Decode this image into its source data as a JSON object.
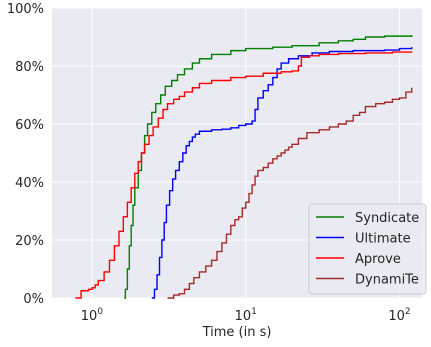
{
  "chart_data": {
    "type": "line",
    "title": "",
    "xlabel": "Time (in s)",
    "ylabel": "",
    "x_scale": "log",
    "xlim": [
      0.55,
      140
    ],
    "ylim": [
      0,
      100
    ],
    "x_ticks": [
      {
        "value": 1,
        "label_base": "10",
        "label_exp": "0"
      },
      {
        "value": 10,
        "label_base": "10",
        "label_exp": "1"
      },
      {
        "value": 100,
        "label_base": "10",
        "label_exp": "2"
      }
    ],
    "y_ticks": [
      {
        "value": 0,
        "label": "0%"
      },
      {
        "value": 20,
        "label": "20%"
      },
      {
        "value": 40,
        "label": "40%"
      },
      {
        "value": 60,
        "label": "60%"
      },
      {
        "value": 80,
        "label": "80%"
      },
      {
        "value": 100,
        "label": "100%"
      }
    ],
    "grid": true,
    "background": "#eaeaf2",
    "legend_position": "lower-right",
    "series": [
      {
        "name": "Syndicate",
        "color": "#008000",
        "points": [
          [
            1.62,
            0
          ],
          [
            1.65,
            3
          ],
          [
            1.7,
            10
          ],
          [
            1.75,
            18
          ],
          [
            1.8,
            25
          ],
          [
            1.85,
            32
          ],
          [
            1.9,
            38
          ],
          [
            2.0,
            44
          ],
          [
            2.1,
            50
          ],
          [
            2.2,
            56
          ],
          [
            2.3,
            60
          ],
          [
            2.45,
            64
          ],
          [
            2.6,
            67
          ],
          [
            2.8,
            70
          ],
          [
            3.0,
            73
          ],
          [
            3.3,
            75
          ],
          [
            3.6,
            77
          ],
          [
            4.0,
            79
          ],
          [
            4.5,
            81
          ],
          [
            5.0,
            82.5
          ],
          [
            6.0,
            84
          ],
          [
            8.0,
            85.3
          ],
          [
            10.0,
            86
          ],
          [
            15.0,
            86.5
          ],
          [
            20.0,
            87
          ],
          [
            30.0,
            88
          ],
          [
            40.0,
            88.7
          ],
          [
            50.0,
            89.2
          ],
          [
            60.0,
            90
          ],
          [
            80.0,
            90.3
          ],
          [
            120.0,
            90.7
          ]
        ]
      },
      {
        "name": "Ultimate",
        "color": "#0000ff",
        "points": [
          [
            2.45,
            0
          ],
          [
            2.55,
            3
          ],
          [
            2.65,
            8
          ],
          [
            2.75,
            14
          ],
          [
            2.85,
            20
          ],
          [
            2.95,
            26
          ],
          [
            3.05,
            32
          ],
          [
            3.2,
            37
          ],
          [
            3.35,
            41
          ],
          [
            3.5,
            44
          ],
          [
            3.7,
            47
          ],
          [
            3.9,
            50
          ],
          [
            4.1,
            52.5
          ],
          [
            4.3,
            54
          ],
          [
            4.5,
            55.5
          ],
          [
            4.7,
            56.5
          ],
          [
            5.0,
            57.5
          ],
          [
            6.0,
            58
          ],
          [
            7.0,
            58.2
          ],
          [
            8.0,
            58.7
          ],
          [
            9.0,
            59.5
          ],
          [
            10.0,
            60
          ],
          [
            11.0,
            61
          ],
          [
            11.5,
            65
          ],
          [
            12.0,
            69
          ],
          [
            13.0,
            71.5
          ],
          [
            14.0,
            73.5
          ],
          [
            15.0,
            76
          ],
          [
            16.0,
            79
          ],
          [
            17.0,
            81
          ],
          [
            19.0,
            82.5
          ],
          [
            22.0,
            83.5
          ],
          [
            27.0,
            84.5
          ],
          [
            35.0,
            85
          ],
          [
            50.0,
            85.3
          ],
          [
            80.0,
            85.5
          ],
          [
            100.0,
            86
          ],
          [
            120.0,
            86.5
          ]
        ]
      },
      {
        "name": "Aprove",
        "color": "#ff0000",
        "points": [
          [
            0.78,
            0
          ],
          [
            0.85,
            2.5
          ],
          [
            0.95,
            3
          ],
          [
            1.0,
            3.5
          ],
          [
            1.05,
            4.5
          ],
          [
            1.1,
            6
          ],
          [
            1.2,
            9
          ],
          [
            1.3,
            13
          ],
          [
            1.4,
            18
          ],
          [
            1.5,
            23
          ],
          [
            1.6,
            28
          ],
          [
            1.7,
            33
          ],
          [
            1.8,
            38
          ],
          [
            1.9,
            43
          ],
          [
            2.0,
            47
          ],
          [
            2.1,
            50
          ],
          [
            2.2,
            53
          ],
          [
            2.35,
            56
          ],
          [
            2.5,
            59
          ],
          [
            2.7,
            62
          ],
          [
            2.9,
            65
          ],
          [
            3.1,
            67
          ],
          [
            3.4,
            68.5
          ],
          [
            3.7,
            69.5
          ],
          [
            4.0,
            71
          ],
          [
            4.5,
            72.5
          ],
          [
            5.0,
            74
          ],
          [
            6.0,
            75
          ],
          [
            8.0,
            76
          ],
          [
            10.0,
            76.5
          ],
          [
            13.0,
            77.5
          ],
          [
            17.0,
            78
          ],
          [
            20.0,
            78.3
          ],
          [
            22.0,
            80
          ],
          [
            23.0,
            83
          ],
          [
            26.0,
            83.5
          ],
          [
            30.0,
            84
          ],
          [
            40.0,
            84.3
          ],
          [
            60.0,
            84.5
          ],
          [
            90.0,
            84.8
          ],
          [
            120.0,
            85
          ]
        ]
      },
      {
        "name": "DynamiTe",
        "color": "#a52a2a",
        "points": [
          [
            3.1,
            0
          ],
          [
            3.4,
            1
          ],
          [
            3.7,
            1.5
          ],
          [
            4.0,
            3
          ],
          [
            4.3,
            5
          ],
          [
            4.6,
            7
          ],
          [
            5.0,
            9
          ],
          [
            5.5,
            11
          ],
          [
            6.0,
            13
          ],
          [
            6.5,
            16
          ],
          [
            7.0,
            19
          ],
          [
            7.5,
            22
          ],
          [
            8.0,
            25
          ],
          [
            8.5,
            27
          ],
          [
            9.0,
            28
          ],
          [
            9.5,
            31
          ],
          [
            10.0,
            33
          ],
          [
            10.5,
            36
          ],
          [
            11.0,
            39
          ],
          [
            11.5,
            42
          ],
          [
            12.0,
            44
          ],
          [
            13.0,
            45
          ],
          [
            14.0,
            46.5
          ],
          [
            15.0,
            48
          ],
          [
            16.0,
            49
          ],
          [
            17.0,
            50
          ],
          [
            18.0,
            51
          ],
          [
            19.0,
            52
          ],
          [
            20.0,
            53
          ],
          [
            22.0,
            55
          ],
          [
            25.0,
            57
          ],
          [
            30.0,
            58
          ],
          [
            35.0,
            59
          ],
          [
            40.0,
            60
          ],
          [
            45.0,
            61
          ],
          [
            50.0,
            63
          ],
          [
            55.0,
            64
          ],
          [
            60.0,
            66
          ],
          [
            70.0,
            67
          ],
          [
            80.0,
            67.5
          ],
          [
            90.0,
            68.5
          ],
          [
            100.0,
            69
          ],
          [
            110.0,
            71
          ],
          [
            120.0,
            72.5
          ]
        ]
      }
    ]
  }
}
